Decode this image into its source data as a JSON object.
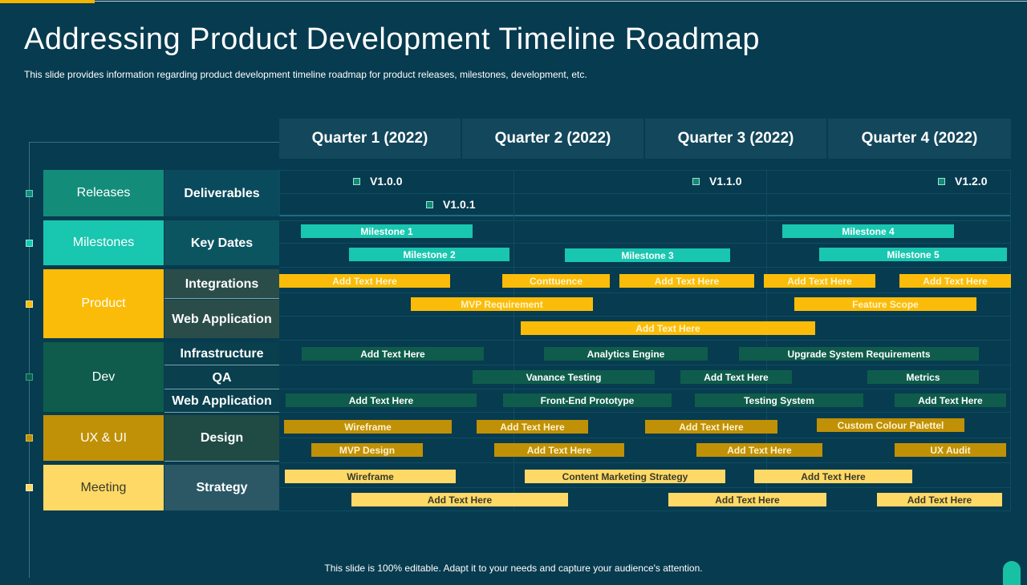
{
  "title": "Addressing Product Development Timeline Roadmap",
  "subtitle": "This slide provides information regarding product development timeline roadmap for product releases, milestones, development, etc.",
  "footer": "This slide is 100% editable. Adapt it to your needs and capture your audience's attention.",
  "quarters": [
    "Quarter 1 (2022)",
    "Quarter 2 (2022)",
    "Quarter 3 (2022)",
    "Quarter 4 (2022)"
  ],
  "categories": {
    "releases": "Releases",
    "milestones": "Milestones",
    "product": "Product",
    "dev": "Dev",
    "uxui": "UX & UI",
    "meeting": "Meeting"
  },
  "subcategories": {
    "deliverables": "Deliverables",
    "key_dates": "Key Dates",
    "integrations": "Integrations",
    "web_application_product": "Web Application",
    "infrastructure": "Infrastructure",
    "qa": "QA",
    "web_application_dev": "Web Application",
    "design": "Design",
    "strategy": "Strategy"
  },
  "versions": [
    "V1.0.0",
    "V1.0.1",
    "V1.1.0",
    "V1.2.0"
  ],
  "milestones": [
    "Milestone 1",
    "Milestone 2",
    "Milestone 3",
    "Milestone 4",
    "Milestone 5"
  ],
  "product": {
    "integrations": [
      "Add Text Here",
      "Conttuence",
      "Add Text Here",
      "Add Text Here",
      "Add Text Here"
    ],
    "web_app": [
      "MVP Requirement",
      "Feature Scope"
    ],
    "row3": [
      "Add Text Here"
    ]
  },
  "dev": {
    "infrastructure": [
      "Add Text Here",
      "Analytics Engine",
      "Upgrade System Requirements"
    ],
    "qa": [
      "Vanance Testing",
      "Add Text Here",
      "Metrics"
    ],
    "web_app": [
      "Add Text Here",
      "Front-End  Prototype",
      "Testing System",
      "Add Text Here"
    ]
  },
  "ux": {
    "row1": [
      "Wireframe",
      "Add Text Here",
      "Add Text Here",
      "Custom Colour Palettel"
    ],
    "row2": [
      "MVP Design",
      "Add Text Here",
      "Add Text Here",
      "UX Audit"
    ]
  },
  "meeting": {
    "row1": [
      "Wireframe",
      "Content Marketing Strategy",
      "Add Text Here"
    ],
    "row2": [
      "Add Text Here",
      "Add Text Here",
      "Add Text Here"
    ]
  },
  "colors": {
    "background": "#073b4f",
    "releases": "#138d7a",
    "milestones": "#19c6b0",
    "product": "#fbbc09",
    "dev": "#0f5c4c",
    "uxui": "#c09006",
    "meeting": "#fed966",
    "accent": "#f4b400"
  }
}
